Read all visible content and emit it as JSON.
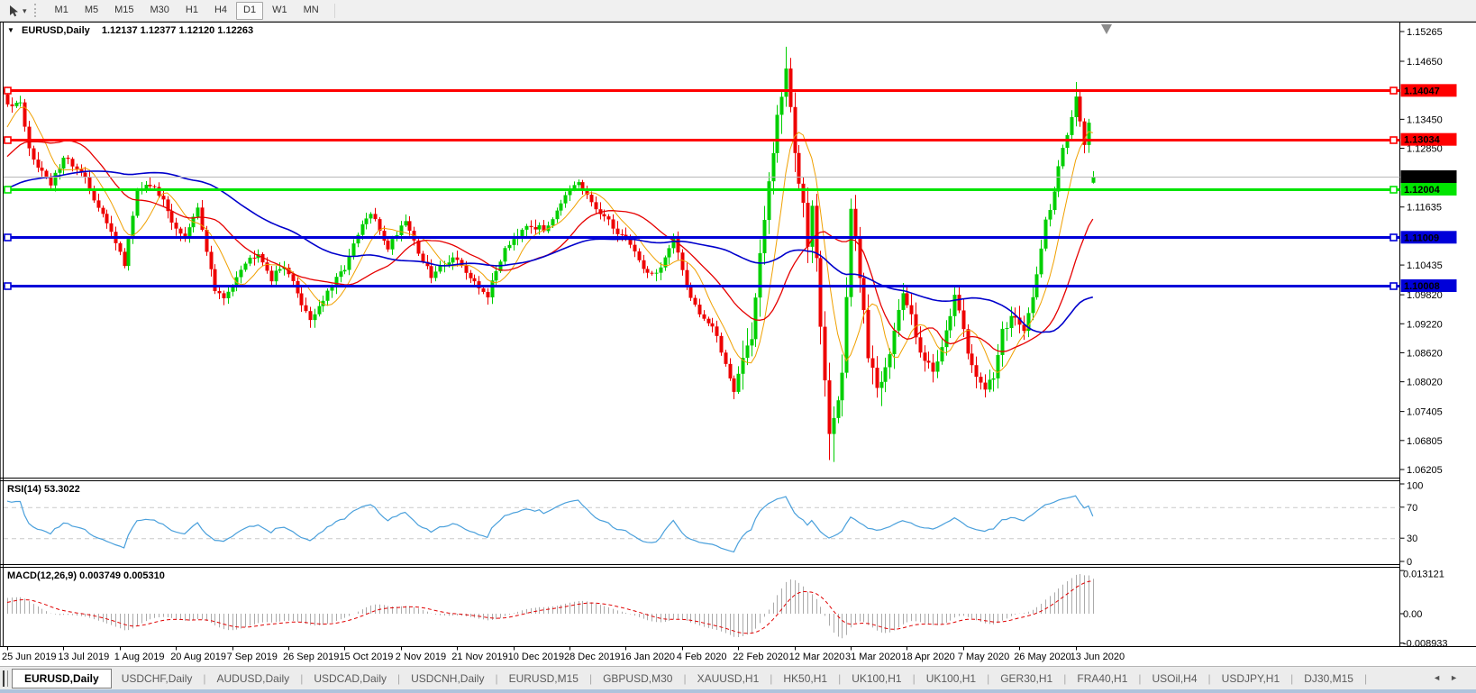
{
  "toolbar": {
    "timeframes": [
      "M1",
      "M5",
      "M15",
      "M30",
      "H1",
      "H4",
      "D1",
      "W1",
      "MN"
    ],
    "active_timeframe": "D1"
  },
  "icons": {
    "title_marker": "▼",
    "dropdown_caret": "▾",
    "tab_scroll_left": "◄",
    "tab_scroll_right": "►"
  },
  "chart": {
    "symbol_period": "EURUSD,Daily",
    "ohlc_text": "1.12137 1.12377 1.12120 1.12263"
  },
  "y_axis": {
    "ticks": [
      "1.15265",
      "1.14650",
      "1.13450",
      "1.12850",
      "1.11635",
      "1.10435",
      "1.09820",
      "1.09220",
      "1.08620",
      "1.08020",
      "1.07405",
      "1.06805",
      "1.06205"
    ]
  },
  "price_lines": [
    {
      "label": "1.14047",
      "price": 1.14047,
      "color": "#FF0000",
      "text_color": "#FFFFFF"
    },
    {
      "label": "1.13034",
      "price": 1.13034,
      "color": "#FF0000",
      "text_color": "#FFFFFF"
    },
    {
      "label": "1.12004",
      "price": 1.12004,
      "color": "#00E400",
      "text_color": "#000000"
    },
    {
      "label": "1.11009",
      "price": 1.11009,
      "color": "#0000D9",
      "text_color": "#FFFFFF"
    },
    {
      "label": "1.10008",
      "price": 1.10008,
      "color": "#0000D9",
      "text_color": "#FFFFFF"
    }
  ],
  "current_price": {
    "label": "1.12263",
    "price": 1.12263,
    "line_color": "#B9B9B9",
    "box_color": "#000000",
    "text_color": "#FFFFFF"
  },
  "rsi": {
    "label": "RSI(14) 53.3022",
    "color": "#4AA0DC",
    "levels": [
      70,
      30
    ],
    "ticks": [
      {
        "label": "100",
        "value": 100
      },
      {
        "label": "70",
        "value": 70
      },
      {
        "label": "30",
        "value": 30
      },
      {
        "label": "0",
        "value": 0
      }
    ]
  },
  "macd": {
    "label": "MACD(12,26,9) 0.003749 0.005310",
    "hist_color": "#ABABAB",
    "signal_color": "#E00000",
    "ticks": [
      {
        "label": "0.013121",
        "value": 0.013121
      },
      {
        "label": "0.00",
        "value": 0
      },
      {
        "label": "-0.008933",
        "value": -0.008933
      }
    ]
  },
  "x_axis": {
    "candles_per_label": 13,
    "dates": [
      "25 Jun 2019",
      "13 Jul 2019",
      "1 Aug 2019",
      "20 Aug 2019",
      "7 Sep 2019",
      "26 Sep 2019",
      "15 Oct 2019",
      "2 Nov 2019",
      "21 Nov 2019",
      "10 Dec 2019",
      "28 Dec 2019",
      "16 Jan 2020",
      "4 Feb 2020",
      "22 Feb 2020",
      "12 Mar 2020",
      "31 Mar 2020",
      "18 Apr 2020",
      "7 May 2020",
      "26 May 2020",
      "13 Jun 2020"
    ]
  },
  "tabs": {
    "active_index": 0,
    "separator": "|",
    "items": [
      "EURUSD,Daily",
      "USDCHF,Daily",
      "AUDUSD,Daily",
      "USDCAD,Daily",
      "USDCNH,Daily",
      "EURUSD,M15",
      "GBPUSD,M30",
      "XAUUSD,H1",
      "HK50,H1",
      "UK100,H1",
      "UK100,H1",
      "GER30,H1",
      "FRA40,H1",
      "USOil,H4",
      "USDJPY,H1",
      "DJ30,M15"
    ]
  },
  "colors": {
    "up": "#00CF00",
    "down": "#EE0000"
  },
  "chart_data": {
    "type": "candlestick",
    "symbol": "EURUSD",
    "period": "Daily",
    "current_bar": {
      "open": 1.12137,
      "high": 1.12377,
      "low": 1.1212,
      "close": 1.12263
    },
    "n_candles": 252,
    "seed": 987654321,
    "visible_price_range": [
      1.06205,
      1.15265
    ],
    "pre_close_waypoints": [
      [
        -34,
        1.1165
      ],
      [
        -25,
        1.1135
      ],
      [
        -15,
        1.126
      ],
      [
        -8,
        1.1215
      ],
      [
        -1,
        1.14
      ]
    ],
    "close_waypoints": [
      [
        0,
        1.137
      ],
      [
        3,
        1.1373
      ],
      [
        5,
        1.1282
      ],
      [
        10,
        1.1207
      ],
      [
        13,
        1.1271
      ],
      [
        18,
        1.122
      ],
      [
        22,
        1.1145
      ],
      [
        26,
        1.1076
      ],
      [
        27,
        1.104
      ],
      [
        30,
        1.12
      ],
      [
        34,
        1.121
      ],
      [
        38,
        1.1135
      ],
      [
        41,
        1.1098
      ],
      [
        44,
        1.116
      ],
      [
        48,
        1.099
      ],
      [
        50,
        1.0972
      ],
      [
        54,
        1.104
      ],
      [
        58,
        1.1073
      ],
      [
        61,
        1.1015
      ],
      [
        64,
        1.1045
      ],
      [
        68,
        1.0965
      ],
      [
        70,
        1.0932
      ],
      [
        74,
        1.0985
      ],
      [
        78,
        1.104
      ],
      [
        82,
        1.1125
      ],
      [
        84,
        1.115
      ],
      [
        88,
        1.108
      ],
      [
        92,
        1.114
      ],
      [
        95,
        1.107
      ],
      [
        98,
        1.1018
      ],
      [
        101,
        1.105
      ],
      [
        104,
        1.106
      ],
      [
        107,
        1.101
      ],
      [
        111,
        1.0981
      ],
      [
        115,
        1.108
      ],
      [
        120,
        1.113
      ],
      [
        124,
        1.1115
      ],
      [
        128,
        1.1175
      ],
      [
        132,
        1.1212
      ],
      [
        136,
        1.116
      ],
      [
        140,
        1.1121
      ],
      [
        144,
        1.109
      ],
      [
        147,
        1.1035
      ],
      [
        150,
        1.1025
      ],
      [
        154,
        1.1094
      ],
      [
        157,
        1.1
      ],
      [
        160,
        1.0945
      ],
      [
        163,
        1.0915
      ],
      [
        166,
        1.084
      ],
      [
        168,
        1.0786
      ],
      [
        170,
        1.0851
      ],
      [
        172,
        1.09
      ],
      [
        175,
        1.1134
      ],
      [
        177,
        1.128
      ],
      [
        180,
        1.145
      ],
      [
        181,
        1.136
      ],
      [
        182,
        1.1271
      ],
      [
        184,
        1.1184
      ],
      [
        185,
        1.11
      ],
      [
        186,
        1.1182
      ],
      [
        188,
        1.0917
      ],
      [
        190,
        1.0694
      ],
      [
        191,
        1.0727
      ],
      [
        193,
        1.082
      ],
      [
        195,
        1.1141
      ],
      [
        197,
        1.103
      ],
      [
        199,
        1.086
      ],
      [
        201,
        1.0791
      ],
      [
        204,
        1.087
      ],
      [
        207,
        1.098
      ],
      [
        209,
        1.094
      ],
      [
        211,
        1.087
      ],
      [
        214,
        1.082
      ],
      [
        216,
        1.088
      ],
      [
        219,
        1.098
      ],
      [
        221,
        1.09
      ],
      [
        223,
        1.0834
      ],
      [
        226,
        1.079
      ],
      [
        228,
        1.0805
      ],
      [
        230,
        1.0915
      ],
      [
        233,
        1.094
      ],
      [
        235,
        1.0898
      ],
      [
        237,
        1.098
      ],
      [
        240,
        1.1134
      ],
      [
        242,
        1.12
      ],
      [
        244,
        1.1292
      ],
      [
        246,
        1.134
      ],
      [
        247,
        1.1392
      ],
      [
        248,
        1.1339
      ],
      [
        249,
        1.1296
      ],
      [
        250,
        1.1332
      ],
      [
        251,
        1.12263
      ]
    ],
    "pinned_indices": [
      180,
      190,
      191,
      247,
      251
    ],
    "volatility_segments": [
      {
        "from": 0,
        "to": 169,
        "amp": 0.0016
      },
      {
        "from": 170,
        "to": 205,
        "amp": 0.0042
      },
      {
        "from": 206,
        "to": 237,
        "amp": 0.0025
      },
      {
        "from": 238,
        "to": 251,
        "amp": 0.0022
      }
    ],
    "wick_overrides": {
      "0": {
        "high": 1.1412
      },
      "180": {
        "high": 1.1495
      },
      "190": {
        "low": 1.064
      },
      "191": {
        "low": 1.0636
      },
      "247": {
        "high": 1.1422
      }
    },
    "moving_averages": [
      {
        "period": 8,
        "color": "#F0A000",
        "width": 1
      },
      {
        "period": 21,
        "color": "#E60000",
        "width": 1.3
      },
      {
        "period": 55,
        "color": "#0000CC",
        "width": 1.6
      }
    ],
    "indicators": {
      "rsi": {
        "period": 14,
        "current": 53.3022
      },
      "macd": {
        "fast": 12,
        "slow": 26,
        "signal": 9,
        "current_macd": 0.003749,
        "current_signal": 0.00531
      }
    }
  }
}
